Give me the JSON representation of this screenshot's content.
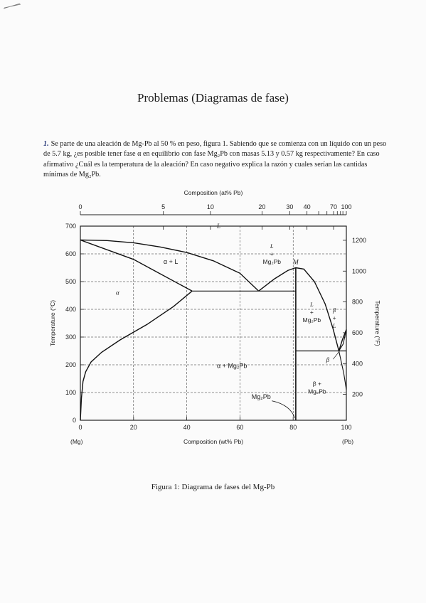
{
  "page": {
    "title": "Problemas (Diagramas de fase)",
    "problem_number": "1.",
    "problem_text": "Se parte de una aleación de Mg-Pb al 50 % en peso, figura 1. Sabiendo que se comienza con un líquido con un peso de 5.7 kg, ¿es posible tener fase α en equilibrio con fase Mg₂Pb con masas 5.13 y 0.57 kg respectivamente? En caso afirmativo ¿Cuál es la temperatura de la aleación? En caso negativo explica la razón y cuales serían las cantidas mínimas de Mg₂Pb.",
    "caption": "Figura 1: Diagrama de fases del Mg-Pb"
  },
  "diagram": {
    "top_axis_label": "Composition (at% Pb)",
    "top_ticks": [
      {
        "label": "0",
        "wt": 0
      },
      {
        "label": "5",
        "wt": 31.2
      },
      {
        "label": "10",
        "wt": 48.9
      },
      {
        "label": "20",
        "wt": 68.3
      },
      {
        "label": "30",
        "wt": 78.7
      },
      {
        "label": "40",
        "wt": 85.2
      },
      {
        "label": "70",
        "wt": 95.2
      },
      {
        "label": "100",
        "wt": 100
      }
    ],
    "top_minor_ticks_wt": [
      89.6,
      92.7,
      96.6,
      97.8,
      98.7
    ],
    "bottom_axis_label": "Composition (wt% Pb)",
    "x_ticks": [
      0,
      20,
      40,
      60,
      80,
      100
    ],
    "x_end_left": "(Mg)",
    "x_end_right": "(Pb)",
    "left_axis_label": "Temperature (°C)",
    "y_ticks": [
      0,
      100,
      200,
      300,
      400,
      500,
      600,
      700
    ],
    "right_axis_label": "Temperature (°F)",
    "f_ticks": [
      200,
      400,
      600,
      800,
      1000,
      1200
    ],
    "regions": [
      {
        "text": "L",
        "wt": 52,
        "t": 700,
        "italic": true
      },
      {
        "text": "α + L",
        "wt": 34,
        "t": 572,
        "italic": false
      },
      {
        "text": "α",
        "wt": 14,
        "t": 460,
        "italic": true
      },
      {
        "text": "α + Mg₂Pb",
        "wt": 57,
        "t": 196,
        "italic": false
      },
      {
        "text": "M",
        "wt": 81,
        "t": 571,
        "italic": true
      },
      {
        "text": "Mg₂Pb",
        "wt": 68,
        "t": 85,
        "italic": false
      },
      {
        "text": "β",
        "wt": 93,
        "t": 218,
        "italic": true
      }
    ],
    "stacked_labels": [
      {
        "lines": [
          "L",
          "+",
          "Mg₂Pb"
        ],
        "wt": 72,
        "t": 620
      },
      {
        "lines": [
          "L",
          "+",
          "Mg₂Pb"
        ],
        "wt": 87,
        "t": 410
      },
      {
        "lines": [
          "β",
          "+",
          "L"
        ],
        "wt": 95.5,
        "t": 390
      },
      {
        "lines": [
          "β +",
          "Mg₂Pb"
        ],
        "wt": 89,
        "t": 125
      }
    ]
  }
}
